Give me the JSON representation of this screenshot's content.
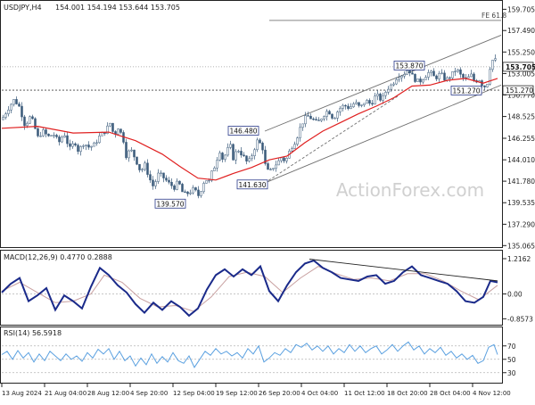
{
  "chart_data": [
    {
      "type": "candlestick",
      "symbol_label": "USDJPY,H4",
      "ohlc_readout": "154.001 154.194 153.644 153.705",
      "ylim": [
        135.0,
        160.3
      ],
      "y_ticks": [
        "159.705",
        "157.490",
        "155.250",
        "153.005",
        "150.770",
        "148.525",
        "146.255",
        "144.010",
        "141.780",
        "139.535",
        "137.290",
        "135.065"
      ],
      "current_price_label": "153.705",
      "level_label": "151.270",
      "fe_label": "FE 61.8",
      "watermark": "ActionForex.com",
      "annotations": [
        "146.480",
        "141.630",
        "139.570",
        "153.870",
        "151.270"
      ],
      "close_path": [
        [
          0,
          148.2
        ],
        [
          8,
          149.5
        ],
        [
          14,
          150.3
        ],
        [
          20,
          149.5
        ],
        [
          26,
          147.6
        ],
        [
          32,
          148.5
        ],
        [
          36,
          147.8
        ],
        [
          40,
          146.3
        ],
        [
          46,
          147.0
        ],
        [
          52,
          146.4
        ],
        [
          58,
          146.7
        ],
        [
          64,
          145.8
        ],
        [
          70,
          146.8
        ],
        [
          76,
          145.1
        ],
        [
          82,
          145.9
        ],
        [
          86,
          144.9
        ],
        [
          92,
          145.8
        ],
        [
          98,
          145.3
        ],
        [
          104,
          145.6
        ],
        [
          110,
          146.5
        ],
        [
          116,
          147.0
        ],
        [
          122,
          147.9
        ],
        [
          126,
          146.4
        ],
        [
          130,
          147.5
        ],
        [
          136,
          146.3
        ],
        [
          140,
          144.2
        ],
        [
          144,
          145.2
        ],
        [
          150,
          144.1
        ],
        [
          156,
          142.7
        ],
        [
          160,
          143.6
        ],
        [
          166,
          142.0
        ],
        [
          170,
          141.2
        ],
        [
          176,
          142.6
        ],
        [
          182,
          142.1
        ],
        [
          188,
          141.5
        ],
        [
          194,
          141.1
        ],
        [
          198,
          141.8
        ],
        [
          202,
          140.7
        ],
        [
          206,
          140.4
        ],
        [
          210,
          140.6
        ],
        [
          216,
          141.0
        ],
        [
          220,
          140.2
        ],
        [
          224,
          141.0
        ],
        [
          228,
          142.1
        ],
        [
          232,
          141.6
        ],
        [
          236,
          142.8
        ],
        [
          240,
          143.6
        ],
        [
          244,
          145.1
        ],
        [
          248,
          144.0
        ],
        [
          252,
          144.8
        ],
        [
          256,
          145.6
        ],
        [
          260,
          144.0
        ],
        [
          264,
          145.2
        ],
        [
          270,
          144.5
        ],
        [
          276,
          143.6
        ],
        [
          282,
          144.8
        ],
        [
          286,
          146.0
        ],
        [
          292,
          145.5
        ],
        [
          296,
          143.2
        ],
        [
          300,
          142.6
        ],
        [
          304,
          143.2
        ],
        [
          310,
          143.8
        ],
        [
          314,
          144.3
        ],
        [
          318,
          143.8
        ],
        [
          324,
          145.2
        ],
        [
          330,
          146.1
        ],
        [
          336,
          147.7
        ],
        [
          342,
          148.6
        ],
        [
          348,
          148.3
        ],
        [
          354,
          147.8
        ],
        [
          360,
          148.6
        ],
        [
          366,
          149.2
        ],
        [
          372,
          148.3
        ],
        [
          378,
          149.3
        ],
        [
          384,
          149.7
        ],
        [
          390,
          149.4
        ],
        [
          396,
          150.0
        ],
        [
          402,
          149.4
        ],
        [
          408,
          150.2
        ],
        [
          414,
          149.8
        ],
        [
          420,
          150.8
        ],
        [
          426,
          150.2
        ],
        [
          432,
          151.4
        ],
        [
          438,
          151.9
        ],
        [
          444,
          152.8
        ],
        [
          450,
          152.9
        ],
        [
          456,
          153.5
        ],
        [
          462,
          152.5
        ],
        [
          468,
          152.1
        ],
        [
          474,
          152.7
        ],
        [
          480,
          153.2
        ],
        [
          486,
          152.5
        ],
        [
          492,
          153.0
        ],
        [
          498,
          152.3
        ],
        [
          504,
          152.8
        ],
        [
          510,
          153.5
        ],
        [
          516,
          152.6
        ],
        [
          522,
          152.4
        ],
        [
          526,
          152.9
        ],
        [
          530,
          152.2
        ],
        [
          536,
          152.4
        ],
        [
          540,
          151.6
        ],
        [
          544,
          151.8
        ],
        [
          548,
          153.9
        ],
        [
          552,
          154.7
        ],
        [
          556,
          153.9
        ]
      ],
      "ma_path": [
        [
          0,
          147.3
        ],
        [
          40,
          147.5
        ],
        [
          80,
          146.8
        ],
        [
          120,
          146.9
        ],
        [
          150,
          146.0
        ],
        [
          180,
          144.6
        ],
        [
          200,
          143.3
        ],
        [
          220,
          142.1
        ],
        [
          240,
          141.9
        ],
        [
          260,
          142.6
        ],
        [
          280,
          143.2
        ],
        [
          300,
          144.0
        ],
        [
          320,
          144.4
        ],
        [
          340,
          145.8
        ],
        [
          360,
          147.0
        ],
        [
          380,
          147.9
        ],
        [
          400,
          148.8
        ],
        [
          420,
          149.6
        ],
        [
          440,
          150.5
        ],
        [
          460,
          151.7
        ],
        [
          480,
          151.8
        ],
        [
          500,
          152.3
        ],
        [
          520,
          152.5
        ],
        [
          540,
          152.0
        ],
        [
          556,
          152.5
        ]
      ],
      "channel_upper": [
        [
          295,
          147.0
        ],
        [
          560,
          157.0
        ]
      ],
      "channel_lower": [
        [
          295,
          141.6
        ],
        [
          560,
          151.8
        ]
      ],
      "channel_dashed": [
        [
          295,
          141.6
        ],
        [
          445,
          150.7
        ]
      ]
    },
    {
      "type": "line",
      "label": "MACD(12,26,9) 0.4770 0.2888",
      "y_ticks": [
        "1.2162",
        "0.00",
        "-0.8573"
      ],
      "ylim": [
        -1.0,
        1.4
      ],
      "macd_path": [
        [
          0,
          0.05
        ],
        [
          10,
          0.35
        ],
        [
          20,
          0.55
        ],
        [
          30,
          -0.25
        ],
        [
          40,
          -0.05
        ],
        [
          50,
          0.2
        ],
        [
          60,
          -0.55
        ],
        [
          70,
          -0.05
        ],
        [
          80,
          -0.25
        ],
        [
          90,
          -0.5
        ],
        [
          100,
          0.25
        ],
        [
          110,
          0.9
        ],
        [
          120,
          0.65
        ],
        [
          130,
          0.3
        ],
        [
          140,
          0.05
        ],
        [
          150,
          -0.35
        ],
        [
          160,
          -0.65
        ],
        [
          170,
          -0.3
        ],
        [
          180,
          -0.55
        ],
        [
          190,
          -0.25
        ],
        [
          200,
          -0.45
        ],
        [
          210,
          -0.75
        ],
        [
          220,
          -0.5
        ],
        [
          230,
          0.15
        ],
        [
          240,
          0.65
        ],
        [
          250,
          0.85
        ],
        [
          260,
          0.6
        ],
        [
          270,
          0.85
        ],
        [
          280,
          0.65
        ],
        [
          290,
          0.95
        ],
        [
          300,
          0.1
        ],
        [
          310,
          -0.25
        ],
        [
          320,
          0.3
        ],
        [
          330,
          0.75
        ],
        [
          340,
          1.05
        ],
        [
          350,
          1.15
        ],
        [
          360,
          0.9
        ],
        [
          370,
          0.75
        ],
        [
          380,
          0.55
        ],
        [
          390,
          0.5
        ],
        [
          400,
          0.45
        ],
        [
          410,
          0.6
        ],
        [
          420,
          0.65
        ],
        [
          430,
          0.35
        ],
        [
          440,
          0.45
        ],
        [
          450,
          0.75
        ],
        [
          460,
          0.95
        ],
        [
          470,
          0.65
        ],
        [
          480,
          0.55
        ],
        [
          490,
          0.45
        ],
        [
          500,
          0.35
        ],
        [
          510,
          0.1
        ],
        [
          520,
          -0.25
        ],
        [
          530,
          -0.3
        ],
        [
          540,
          -0.1
        ],
        [
          548,
          0.45
        ],
        [
          556,
          0.4
        ]
      ],
      "signal_path": [
        [
          0,
          0.1
        ],
        [
          20,
          0.4
        ],
        [
          40,
          0.05
        ],
        [
          60,
          -0.3
        ],
        [
          80,
          -0.25
        ],
        [
          100,
          0.0
        ],
        [
          115,
          0.65
        ],
        [
          135,
          0.4
        ],
        [
          155,
          -0.15
        ],
        [
          175,
          -0.45
        ],
        [
          195,
          -0.4
        ],
        [
          215,
          -0.6
        ],
        [
          235,
          -0.1
        ],
        [
          255,
          0.6
        ],
        [
          275,
          0.75
        ],
        [
          295,
          0.6
        ],
        [
          315,
          0.05
        ],
        [
          335,
          0.55
        ],
        [
          355,
          0.95
        ],
        [
          375,
          0.7
        ],
        [
          395,
          0.5
        ],
        [
          415,
          0.55
        ],
        [
          435,
          0.45
        ],
        [
          455,
          0.7
        ],
        [
          475,
          0.7
        ],
        [
          495,
          0.45
        ],
        [
          515,
          0.1
        ],
        [
          535,
          -0.2
        ],
        [
          556,
          0.3
        ]
      ],
      "trend_line": [
        [
          345,
          1.2
        ],
        [
          556,
          0.45
        ]
      ]
    },
    {
      "type": "line",
      "label": "RSI(14) 56.5918",
      "y_ticks": [
        "70",
        "50",
        "30"
      ],
      "ylim": [
        15,
        95
      ],
      "rsi_path": [
        [
          0,
          57
        ],
        [
          6,
          62
        ],
        [
          12,
          50
        ],
        [
          18,
          63
        ],
        [
          24,
          52
        ],
        [
          30,
          60
        ],
        [
          36,
          46
        ],
        [
          42,
          58
        ],
        [
          48,
          48
        ],
        [
          54,
          62
        ],
        [
          60,
          55
        ],
        [
          66,
          48
        ],
        [
          72,
          58
        ],
        [
          78,
          50
        ],
        [
          84,
          55
        ],
        [
          90,
          47
        ],
        [
          96,
          60
        ],
        [
          102,
          52
        ],
        [
          108,
          65
        ],
        [
          114,
          58
        ],
        [
          120,
          66
        ],
        [
          126,
          50
        ],
        [
          132,
          62
        ],
        [
          138,
          48
        ],
        [
          144,
          55
        ],
        [
          150,
          40
        ],
        [
          156,
          52
        ],
        [
          162,
          42
        ],
        [
          168,
          58
        ],
        [
          174,
          44
        ],
        [
          180,
          54
        ],
        [
          186,
          46
        ],
        [
          192,
          60
        ],
        [
          198,
          48
        ],
        [
          204,
          44
        ],
        [
          210,
          55
        ],
        [
          216,
          38
        ],
        [
          222,
          50
        ],
        [
          228,
          62
        ],
        [
          234,
          56
        ],
        [
          240,
          66
        ],
        [
          246,
          58
        ],
        [
          252,
          62
        ],
        [
          258,
          55
        ],
        [
          264,
          60
        ],
        [
          270,
          52
        ],
        [
          276,
          66
        ],
        [
          282,
          58
        ],
        [
          288,
          70
        ],
        [
          294,
          46
        ],
        [
          300,
          52
        ],
        [
          306,
          60
        ],
        [
          312,
          56
        ],
        [
          318,
          66
        ],
        [
          324,
          60
        ],
        [
          330,
          72
        ],
        [
          336,
          68
        ],
        [
          342,
          74
        ],
        [
          348,
          64
        ],
        [
          354,
          70
        ],
        [
          360,
          62
        ],
        [
          366,
          70
        ],
        [
          372,
          58
        ],
        [
          378,
          66
        ],
        [
          384,
          60
        ],
        [
          390,
          72
        ],
        [
          396,
          62
        ],
        [
          402,
          70
        ],
        [
          408,
          60
        ],
        [
          414,
          66
        ],
        [
          420,
          70
        ],
        [
          426,
          58
        ],
        [
          432,
          64
        ],
        [
          438,
          72
        ],
        [
          444,
          62
        ],
        [
          450,
          70
        ],
        [
          456,
          76
        ],
        [
          462,
          64
        ],
        [
          468,
          70
        ],
        [
          474,
          58
        ],
        [
          480,
          66
        ],
        [
          486,
          60
        ],
        [
          492,
          68
        ],
        [
          498,
          56
        ],
        [
          504,
          62
        ],
        [
          510,
          52
        ],
        [
          516,
          58
        ],
        [
          522,
          50
        ],
        [
          528,
          56
        ],
        [
          534,
          44
        ],
        [
          540,
          48
        ],
        [
          546,
          68
        ],
        [
          552,
          72
        ],
        [
          556,
          57
        ]
      ]
    }
  ],
  "x_axis": {
    "ticks": [
      "13 Aug 2024",
      "21 Aug 04:00",
      "28 Aug 12:00",
      "4 Sep 20:00",
      "12 Sep 04:00",
      "19 Sep 12:00",
      "26 Sep 20:00",
      "4 Oct 04:00",
      "11 Oct 12:00",
      "18 Oct 20:00",
      "28 Oct 04:00",
      "4 Nov 12:00"
    ]
  },
  "colors": {
    "candle": "#3a5a7a",
    "ma": "#e02020",
    "channel": "#707070",
    "macd": "#1a2a8a",
    "signal": "#c8a0a0",
    "rsi": "#5aa0e0",
    "grid": "#b4b4b4",
    "watermark": "#d0d0d0"
  }
}
